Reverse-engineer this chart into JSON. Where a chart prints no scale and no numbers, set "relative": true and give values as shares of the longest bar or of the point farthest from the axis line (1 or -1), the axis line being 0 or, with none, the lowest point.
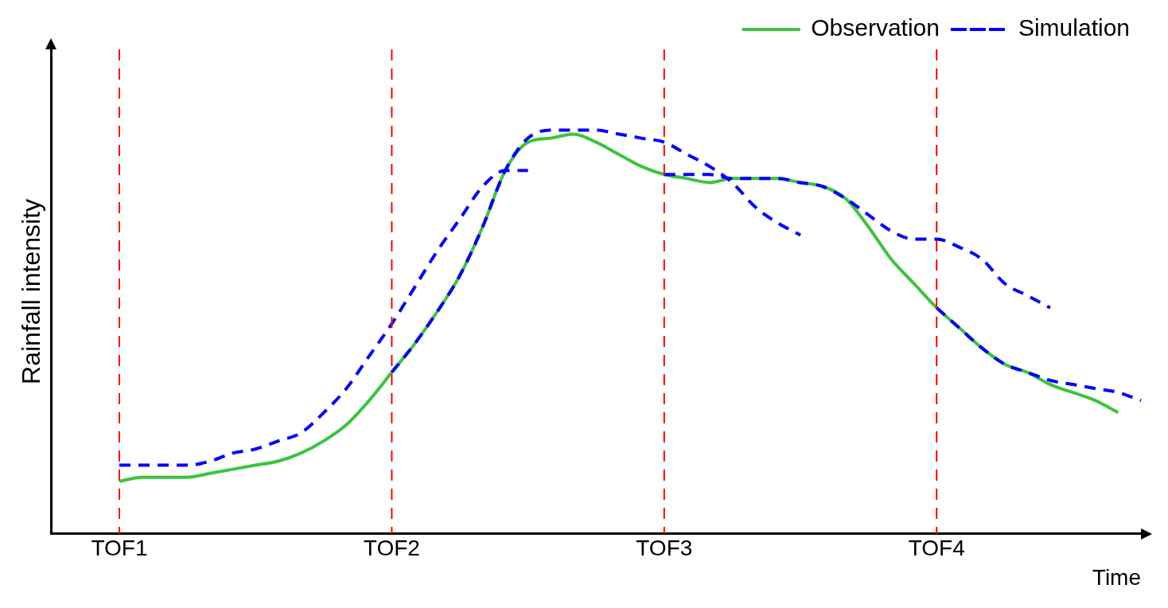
{
  "chart_data": {
    "type": "line",
    "xlabel": "Time",
    "ylabel": "Rainfall intensity",
    "relative": true,
    "categories": [
      null,
      null,
      null,
      "TOF1",
      null,
      null,
      null,
      null,
      null,
      null,
      null,
      null,
      null,
      null,
      null,
      "TOF2",
      null,
      null,
      null,
      null,
      null,
      null,
      null,
      null,
      null,
      null,
      null,
      "TOF3",
      null,
      null,
      null,
      null,
      null,
      null,
      null,
      null,
      null,
      null,
      null,
      "TOF4",
      null,
      null,
      null,
      null,
      null,
      null,
      null,
      null,
      null
    ],
    "legend": "top right",
    "grid": false,
    "marker": "none",
    "ref_lines": [
      {
        "axis": "x",
        "value": "TOF1",
        "color": "#ff0000",
        "line_style": "dashed"
      },
      {
        "axis": "x",
        "value": "TOF2",
        "color": "#ff0000",
        "line_style": "dashed"
      },
      {
        "axis": "x",
        "value": "TOF3",
        "color": "#ff0000",
        "line_style": "dashed"
      },
      {
        "axis": "x",
        "value": "TOF4",
        "color": "#ff0000",
        "line_style": "dashed"
      }
    ],
    "series": [
      {
        "name": "Observation",
        "color": "#3cc43c",
        "line_style": "solid",
        "values": [
          null,
          null,
          null,
          0.13,
          0.14,
          0.14,
          0.14,
          0.15,
          0.16,
          0.17,
          0.18,
          0.2,
          0.23,
          0.27,
          0.33,
          0.4,
          0.47,
          0.55,
          0.64,
          0.76,
          0.9,
          0.97,
          0.98,
          0.99,
          0.97,
          0.94,
          0.91,
          0.89,
          0.88,
          0.87,
          0.88,
          0.88,
          0.88,
          0.87,
          0.86,
          0.83,
          0.76,
          0.68,
          0.62,
          0.56,
          0.51,
          0.46,
          0.42,
          0.4,
          0.37,
          0.35,
          0.33,
          0.3,
          null
        ]
      },
      {
        "name": "Simulation",
        "color": "#0000ff",
        "line_style": "dashed",
        "values": [
          null,
          null,
          null,
          0.17,
          0.17,
          0.17,
          0.17,
          0.18,
          0.2,
          0.21,
          0.23,
          0.25,
          0.3,
          0.36,
          0.44,
          0.52,
          0.61,
          0.7,
          0.78,
          0.86,
          0.9,
          0.9,
          null,
          null,
          null,
          null,
          null,
          null,
          null,
          null,
          null,
          null,
          null,
          null,
          null,
          null,
          null,
          null,
          null,
          null,
          null,
          null,
          null,
          null,
          null,
          null,
          null,
          null,
          null
        ]
      },
      {
        "color": "#0000ff",
        "line_style": "dashed",
        "values": [
          null,
          null,
          null,
          null,
          null,
          null,
          null,
          null,
          null,
          null,
          null,
          null,
          null,
          null,
          null,
          0.4,
          0.47,
          0.55,
          0.64,
          0.76,
          0.9,
          0.98,
          1,
          1,
          1,
          0.99,
          0.98,
          0.97,
          0.94,
          0.91,
          0.87,
          0.81,
          0.77,
          0.74,
          null,
          null,
          null,
          null,
          null,
          null,
          null,
          null,
          null,
          null,
          null,
          null,
          null,
          null,
          null
        ]
      },
      {
        "color": "#0000ff",
        "line_style": "dashed",
        "values": [
          null,
          null,
          null,
          null,
          null,
          null,
          null,
          null,
          null,
          null,
          null,
          null,
          null,
          null,
          null,
          null,
          null,
          null,
          null,
          null,
          null,
          null,
          null,
          null,
          null,
          null,
          null,
          0.89,
          0.89,
          0.89,
          0.88,
          0.88,
          0.88,
          0.87,
          0.86,
          0.83,
          0.79,
          0.75,
          0.73,
          0.73,
          0.71,
          0.68,
          0.62,
          0.59,
          0.56,
          null,
          null,
          null,
          null
        ]
      },
      {
        "color": "#0000ff",
        "line_style": "dashed",
        "values": [
          null,
          null,
          null,
          null,
          null,
          null,
          null,
          null,
          null,
          null,
          null,
          null,
          null,
          null,
          null,
          null,
          null,
          null,
          null,
          null,
          null,
          null,
          null,
          null,
          null,
          null,
          null,
          null,
          null,
          null,
          null,
          null,
          null,
          null,
          null,
          null,
          null,
          null,
          null,
          0.56,
          0.51,
          0.46,
          0.42,
          0.4,
          0.38,
          0.37,
          0.36,
          0.35,
          0.33
        ]
      }
    ]
  }
}
